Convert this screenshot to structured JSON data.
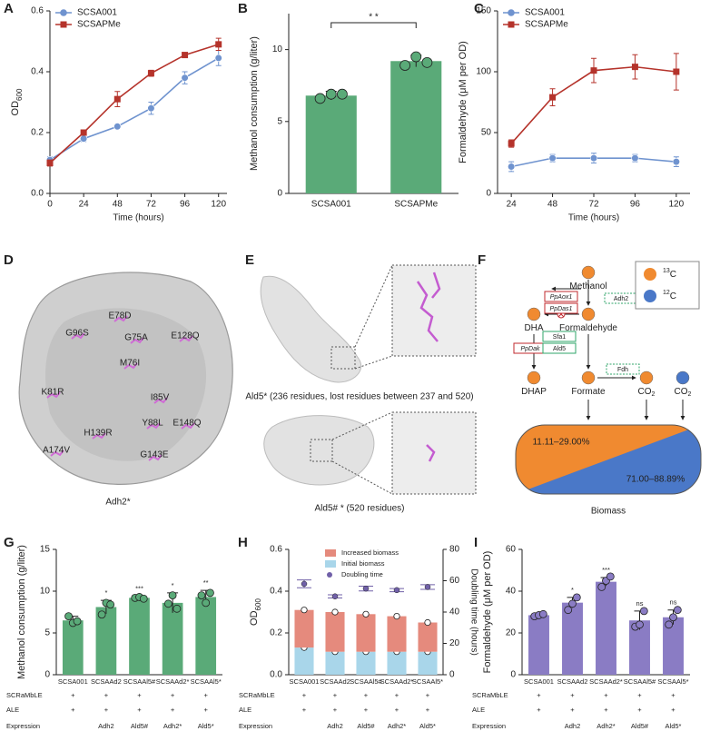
{
  "chart_data": [
    {
      "panel": "A",
      "type": "line",
      "xlabel": "Time (hours)",
      "ylabel": "OD",
      "ylabel_sub": "600",
      "x": [
        0,
        24,
        48,
        72,
        96,
        120
      ],
      "xlim": [
        0,
        126
      ],
      "xticks": [
        0,
        24,
        48,
        72,
        96,
        120
      ],
      "ylim": [
        0,
        0.6
      ],
      "yticks": [
        {
          "value": 0,
          "label": "0.0"
        },
        {
          "value": 0.2,
          "label": "0.2"
        },
        {
          "value": 0.4,
          "label": "0.4"
        },
        {
          "value": 0.6,
          "label": "0.6"
        }
      ],
      "legend": "upper left",
      "series": [
        {
          "name": "SCSA001",
          "color": "#6f93cf",
          "marker": "circle",
          "values": [
            0.11,
            0.18,
            0.22,
            0.28,
            0.38,
            0.445
          ],
          "errors": [
            0.01,
            0.01,
            0.005,
            0.02,
            0.02,
            0.025
          ]
        },
        {
          "name": "SCSAPMe",
          "color": "#b5332b",
          "marker": "square",
          "values": [
            0.1,
            0.2,
            0.31,
            0.395,
            0.455,
            0.49
          ],
          "errors": [
            0.01,
            0.005,
            0.025,
            0.01,
            0.005,
            0.02
          ]
        }
      ]
    },
    {
      "panel": "B",
      "type": "bar",
      "ylabel": "Methanol consumption (g/liter)",
      "categories": [
        "SCSA001",
        "SCSAPMe"
      ],
      "values": [
        6.8,
        9.2
      ],
      "errors": [
        0.3,
        0.4
      ],
      "points": [
        [
          6.6,
          6.9,
          6.9
        ],
        [
          8.9,
          9.5,
          9.1
        ]
      ],
      "color": "#5aaa78",
      "ylim": [
        0,
        12.5
      ],
      "yticks": [
        0,
        5,
        10
      ],
      "annotation": "* *"
    },
    {
      "panel": "C",
      "type": "line",
      "xlabel": "Time (hours)",
      "ylabel": "Formaldehyde (μM per OD)",
      "x": [
        24,
        48,
        72,
        96,
        120
      ],
      "xlim": [
        16,
        128
      ],
      "xticks": [
        24,
        48,
        72,
        96,
        120
      ],
      "ylim": [
        0,
        150
      ],
      "yticks": [
        0,
        50,
        100,
        150
      ],
      "legend": "upper left",
      "series": [
        {
          "name": "SCSA001",
          "color": "#6f93cf",
          "marker": "circle",
          "values": [
            22,
            29,
            29,
            29,
            26
          ],
          "errors": [
            4,
            3,
            4,
            3,
            4
          ]
        },
        {
          "name": "SCSAPMe",
          "color": "#b5332b",
          "marker": "square",
          "values": [
            41,
            79,
            101,
            104,
            100
          ],
          "errors": [
            3,
            7,
            10,
            10,
            15
          ]
        }
      ]
    },
    {
      "panel": "G",
      "type": "bar",
      "ylabel": "Methanol consumption (g/liter)",
      "categories": [
        "SCSA001",
        "SCSAAd2",
        "SCSAAl5#",
        "SCSAAd2*",
        "SCSAAl5*"
      ],
      "values": [
        6.5,
        8.1,
        9.2,
        8.6,
        9.3
      ],
      "errors": [
        0.5,
        0.8,
        0.2,
        1.2,
        0.8
      ],
      "points": [
        [
          7.0,
          6.2,
          6.4
        ],
        [
          7.2,
          8.6,
          8.4
        ],
        [
          9.2,
          9.3,
          9.1
        ],
        [
          8.5,
          9.5,
          7.9
        ],
        [
          9.5,
          8.6,
          9.8
        ]
      ],
      "significance": [
        null,
        "*",
        "***",
        "*",
        "**"
      ],
      "color": "#5aaa78",
      "ylim": [
        0,
        15
      ],
      "yticks": [
        0,
        5,
        10,
        15
      ],
      "table_rows": [
        {
          "label": "SCRaMbLE",
          "values": [
            "+",
            "+",
            "+",
            "+",
            "+"
          ]
        },
        {
          "label": "ALE",
          "values": [
            "+",
            "+",
            "+",
            "+",
            "+"
          ]
        },
        {
          "label": "Expression",
          "values": [
            null,
            "Adh2",
            "Ald5#",
            "Adh2*",
            "Ald5*"
          ]
        }
      ]
    },
    {
      "panel": "H",
      "type": "stacked_bar",
      "ylabel": "OD",
      "ylabel_sub": "600",
      "y2label": "Doubling time (hours)",
      "categories": [
        "SCSA001",
        "SCSAAd2",
        "SCSAAl5#",
        "SCSAAd2*",
        "SCSAAl5*"
      ],
      "ylim": [
        0,
        0.6
      ],
      "yticks": [
        {
          "value": 0,
          "label": "0.0"
        },
        {
          "value": 0.2,
          "label": "0.2"
        },
        {
          "value": 0.4,
          "label": "0.4"
        },
        {
          "value": 0.6,
          "label": "0.6"
        }
      ],
      "y2lim": [
        0,
        80
      ],
      "y2ticks": [
        0,
        20,
        40,
        60,
        80
      ],
      "legend": "upper left",
      "series": [
        {
          "name": "Increased biomass",
          "color": "#e58a7d",
          "values": [
            0.18,
            0.19,
            0.18,
            0.17,
            0.14
          ]
        },
        {
          "name": "Initial biomass",
          "color": "#a9d6ea",
          "values": [
            0.13,
            0.11,
            0.11,
            0.11,
            0.11
          ]
        },
        {
          "name": "Doubling time",
          "color": "#7060a8",
          "axis": "y2",
          "values": [
            58,
            50,
            55,
            54,
            56
          ],
          "errors": [
            2.5,
            1,
            1.5,
            1,
            1.5
          ]
        }
      ],
      "table_rows": [
        {
          "label": "SCRaMbLE",
          "values": [
            "+",
            "+",
            "+",
            "+",
            "+"
          ]
        },
        {
          "label": "ALE",
          "values": [
            "+",
            "+",
            "+",
            "+",
            "+"
          ]
        },
        {
          "label": "Expression",
          "values": [
            null,
            "Adh2",
            "Ald5#",
            "Adh2*",
            "Ald5*"
          ]
        }
      ]
    },
    {
      "panel": "I",
      "type": "bar",
      "ylabel": "Formaldehyde (μM per OD)",
      "categories": [
        "SCSA001",
        "SCSAAd2",
        "SCSAAd2*",
        "SCSAAl5#",
        "SCSAAl5*"
      ],
      "values": [
        28.5,
        34.5,
        44.5,
        26,
        27.5
      ],
      "errors": [
        1,
        2.5,
        2,
        4.5,
        3.5
      ],
      "points": [
        [
          28,
          28.5,
          29
        ],
        [
          31,
          34,
          37
        ],
        [
          42,
          45,
          47
        ],
        [
          23,
          24,
          30.5
        ],
        [
          24,
          27.5,
          31
        ]
      ],
      "significance": [
        null,
        "*",
        "***",
        "ns",
        "ns"
      ],
      "color": "#8a7cc4",
      "ylim": [
        0,
        60
      ],
      "yticks": [
        0,
        20,
        40,
        60
      ],
      "table_rows": [
        {
          "label": "SCRaMbLE",
          "values": [
            "+",
            "+",
            "+",
            "+",
            "+"
          ]
        },
        {
          "label": "ALE",
          "values": [
            "+",
            "+",
            "+",
            "+",
            "+"
          ]
        },
        {
          "label": "Expression",
          "values": [
            null,
            "Adh2",
            "Adh2*",
            "Ald5#",
            "Ald5*"
          ]
        }
      ]
    }
  ],
  "structure_d": {
    "panel": "D",
    "caption": "Adh2*",
    "mutations": [
      "G96S",
      "E78D",
      "G75A",
      "E128Q",
      "K81R",
      "M76I",
      "I85V",
      "Y88L",
      "H139R",
      "E148Q",
      "A174V",
      "G143E"
    ]
  },
  "structure_e": {
    "panel": "E",
    "captions": [
      "Ald5* (236 residues, lost residues between 237 and 520)",
      "Ald5# * (520 residues)"
    ]
  },
  "pathway": {
    "panel": "F",
    "nodes": [
      {
        "label": "Methanol"
      },
      {
        "label": "Formaldehyde"
      },
      {
        "label": "DHA"
      },
      {
        "label": "DHAP"
      },
      {
        "label": "Formate"
      },
      {
        "label": "CO",
        "sub": "2"
      },
      {
        "label": "CO",
        "sub": "2"
      }
    ],
    "enzymes": [
      {
        "label": "PpAox1"
      },
      {
        "label": "PpDas1"
      },
      {
        "label": "Adh2"
      },
      {
        "label": "PpDak"
      },
      {
        "label": "Sfa1"
      },
      {
        "label": "Ald5"
      },
      {
        "label": "Fdh"
      }
    ],
    "legend": [
      {
        "mass": "13",
        "element": "C"
      },
      {
        "mass": "12",
        "element": "C"
      }
    ],
    "biomass": {
      "label": "Biomass",
      "shares": [
        "11.11–29.00%",
        "71.00–88.89%"
      ]
    }
  }
}
